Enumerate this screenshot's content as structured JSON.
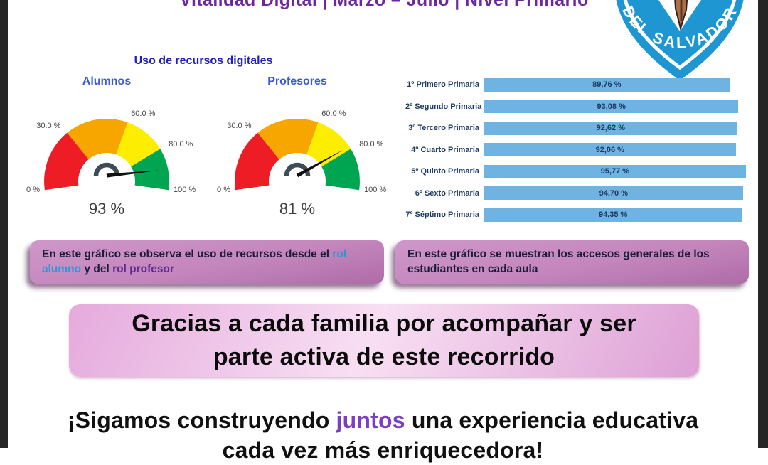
{
  "frame": {
    "color": "#262626"
  },
  "title": "Vitalidad Digital | Marzo – Julio | Nivel Primario",
  "title_color": "#6d28a0",
  "badge": {
    "text": "DEL SALVADOR",
    "shield_color": "#1e96d2"
  },
  "section_header": "Uso de recursos digitales",
  "chart_data": [
    {
      "type": "gauge",
      "title": "Alumnos",
      "value": 93,
      "value_label": "93 %",
      "min": 0,
      "max": 100,
      "ticks": [
        0,
        30,
        60,
        80,
        100
      ],
      "tick_labels": [
        "0 %",
        "30.0 %",
        "60.0 %",
        "80.0 %",
        "100 %"
      ],
      "segments": [
        {
          "from": 0,
          "to": 30,
          "color": "#ee1c25"
        },
        {
          "from": 30,
          "to": 60,
          "color": "#f7a600"
        },
        {
          "from": 60,
          "to": 80,
          "color": "#fdee00"
        },
        {
          "from": 80,
          "to": 100,
          "color": "#00a551"
        }
      ],
      "needle_color": "#111111",
      "hub_color": "#3f4c55"
    },
    {
      "type": "gauge",
      "title": "Profesores",
      "value": 81,
      "value_label": "81 %",
      "min": 0,
      "max": 100,
      "ticks": [
        0,
        30,
        60,
        80,
        100
      ],
      "tick_labels": [
        "0 %",
        "30.0 %",
        "60.0 %",
        "80.0 %",
        "100 %"
      ],
      "segments": [
        {
          "from": 0,
          "to": 30,
          "color": "#ee1c25"
        },
        {
          "from": 30,
          "to": 60,
          "color": "#f7a600"
        },
        {
          "from": 60,
          "to": 80,
          "color": "#fdee00"
        },
        {
          "from": 80,
          "to": 100,
          "color": "#00a551"
        }
      ],
      "needle_color": "#111111",
      "hub_color": "#3f4c55"
    },
    {
      "type": "bar",
      "orientation": "horizontal",
      "categories": [
        "1º Primero Primaria",
        "2º Segundo Primaria",
        "3º Tercero Primaria",
        "4º Cuarto Primaria",
        "5º Quinto Primaria",
        "6º Sexto Primaria",
        "7º Séptimo Primaria"
      ],
      "values": [
        89.76,
        93.08,
        92.62,
        92.06,
        95.77,
        94.7,
        94.35
      ],
      "value_labels": [
        "89,76 %",
        "93,08 %",
        "92,62 %",
        "92,06 %",
        "95,77 %",
        "94,70 %",
        "94,35 %"
      ],
      "bar_color": "#6fb3e2",
      "xlim": [
        0,
        100
      ],
      "grid": false,
      "legend": false
    }
  ],
  "notes": {
    "left": {
      "part1": "En este gráfico se observa el uso de recursos desde el ",
      "highlight1": "rol alumno",
      "highlight1_color": "#2e97d6",
      "part2": " y del ",
      "highlight2": "rol profesor",
      "highlight2_color": "#5f2b8f"
    },
    "right": {
      "text": "En este gráfico se muestran los accesos generales de los estudiantes en cada aula"
    }
  },
  "thanks_banner": {
    "line1": "Gracias a cada familia por acompañar y ser",
    "line2": "parte activa de este recorrido"
  },
  "closing": {
    "part1": "¡Sigamos construyendo ",
    "highlight": "juntos",
    "highlight_color": "#7a3fc2",
    "part2": " una experiencia educativa",
    "line2": "cada vez más enriquecedora!"
  }
}
